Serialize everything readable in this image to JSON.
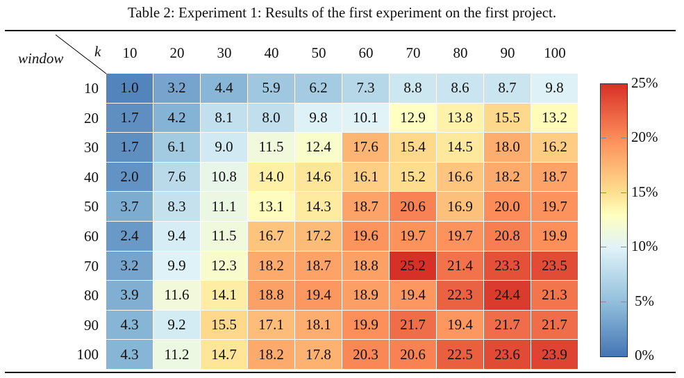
{
  "caption": "Table 2: Experiment 1: Results of the first experiment on the first project.",
  "row_axis_label": "window",
  "col_axis_label": "k",
  "columns": [
    "10",
    "20",
    "30",
    "40",
    "50",
    "60",
    "70",
    "80",
    "90",
    "100"
  ],
  "rows": [
    "10",
    "20",
    "30",
    "40",
    "50",
    "60",
    "70",
    "80",
    "90",
    "100"
  ],
  "colorbar": {
    "ticks": [
      "25%",
      "20%",
      "15%",
      "10%",
      "5%",
      "0%"
    ],
    "min": 0,
    "max": 25,
    "colors": {
      "low": "#4575b4",
      "mid": "#ffffbf",
      "high": "#d73027"
    }
  },
  "chart_data": {
    "type": "heatmap",
    "title": "Table 2: Experiment 1: Results of the first experiment on the first project.",
    "xlabel": "k",
    "ylabel": "window",
    "x": [
      10,
      20,
      30,
      40,
      50,
      60,
      70,
      80,
      90,
      100
    ],
    "y": [
      10,
      20,
      30,
      40,
      50,
      60,
      70,
      80,
      90,
      100
    ],
    "values": [
      [
        1.0,
        3.2,
        4.4,
        5.9,
        6.2,
        7.3,
        8.8,
        8.6,
        8.7,
        9.8
      ],
      [
        1.7,
        4.2,
        8.1,
        8.0,
        9.8,
        10.1,
        12.9,
        13.8,
        15.5,
        13.2
      ],
      [
        1.7,
        6.1,
        9.0,
        11.5,
        12.4,
        17.6,
        15.4,
        14.5,
        18.0,
        16.2
      ],
      [
        2.0,
        7.6,
        10.8,
        14.0,
        14.6,
        16.1,
        15.2,
        16.6,
        18.2,
        18.7
      ],
      [
        3.7,
        8.3,
        11.1,
        13.1,
        14.3,
        18.7,
        20.6,
        16.9,
        20.0,
        19.7
      ],
      [
        2.4,
        9.4,
        11.5,
        16.7,
        17.2,
        19.6,
        19.7,
        19.7,
        20.8,
        19.9
      ],
      [
        3.2,
        9.9,
        12.3,
        18.2,
        18.7,
        18.8,
        25.2,
        21.4,
        23.3,
        23.5
      ],
      [
        3.9,
        11.6,
        14.1,
        18.8,
        19.4,
        18.9,
        19.4,
        22.3,
        24.4,
        21.3
      ],
      [
        4.3,
        9.2,
        15.5,
        17.1,
        18.1,
        19.9,
        21.7,
        19.4,
        21.7,
        21.7
      ],
      [
        4.3,
        11.2,
        14.7,
        18.2,
        17.8,
        20.3,
        20.6,
        22.5,
        23.6,
        23.9
      ]
    ],
    "colorbar_range": [
      0,
      25
    ],
    "colorbar_ticks": [
      "0%",
      "5%",
      "10%",
      "15%",
      "20%",
      "25%"
    ],
    "colormap": "RdYlBu (reversed)"
  }
}
